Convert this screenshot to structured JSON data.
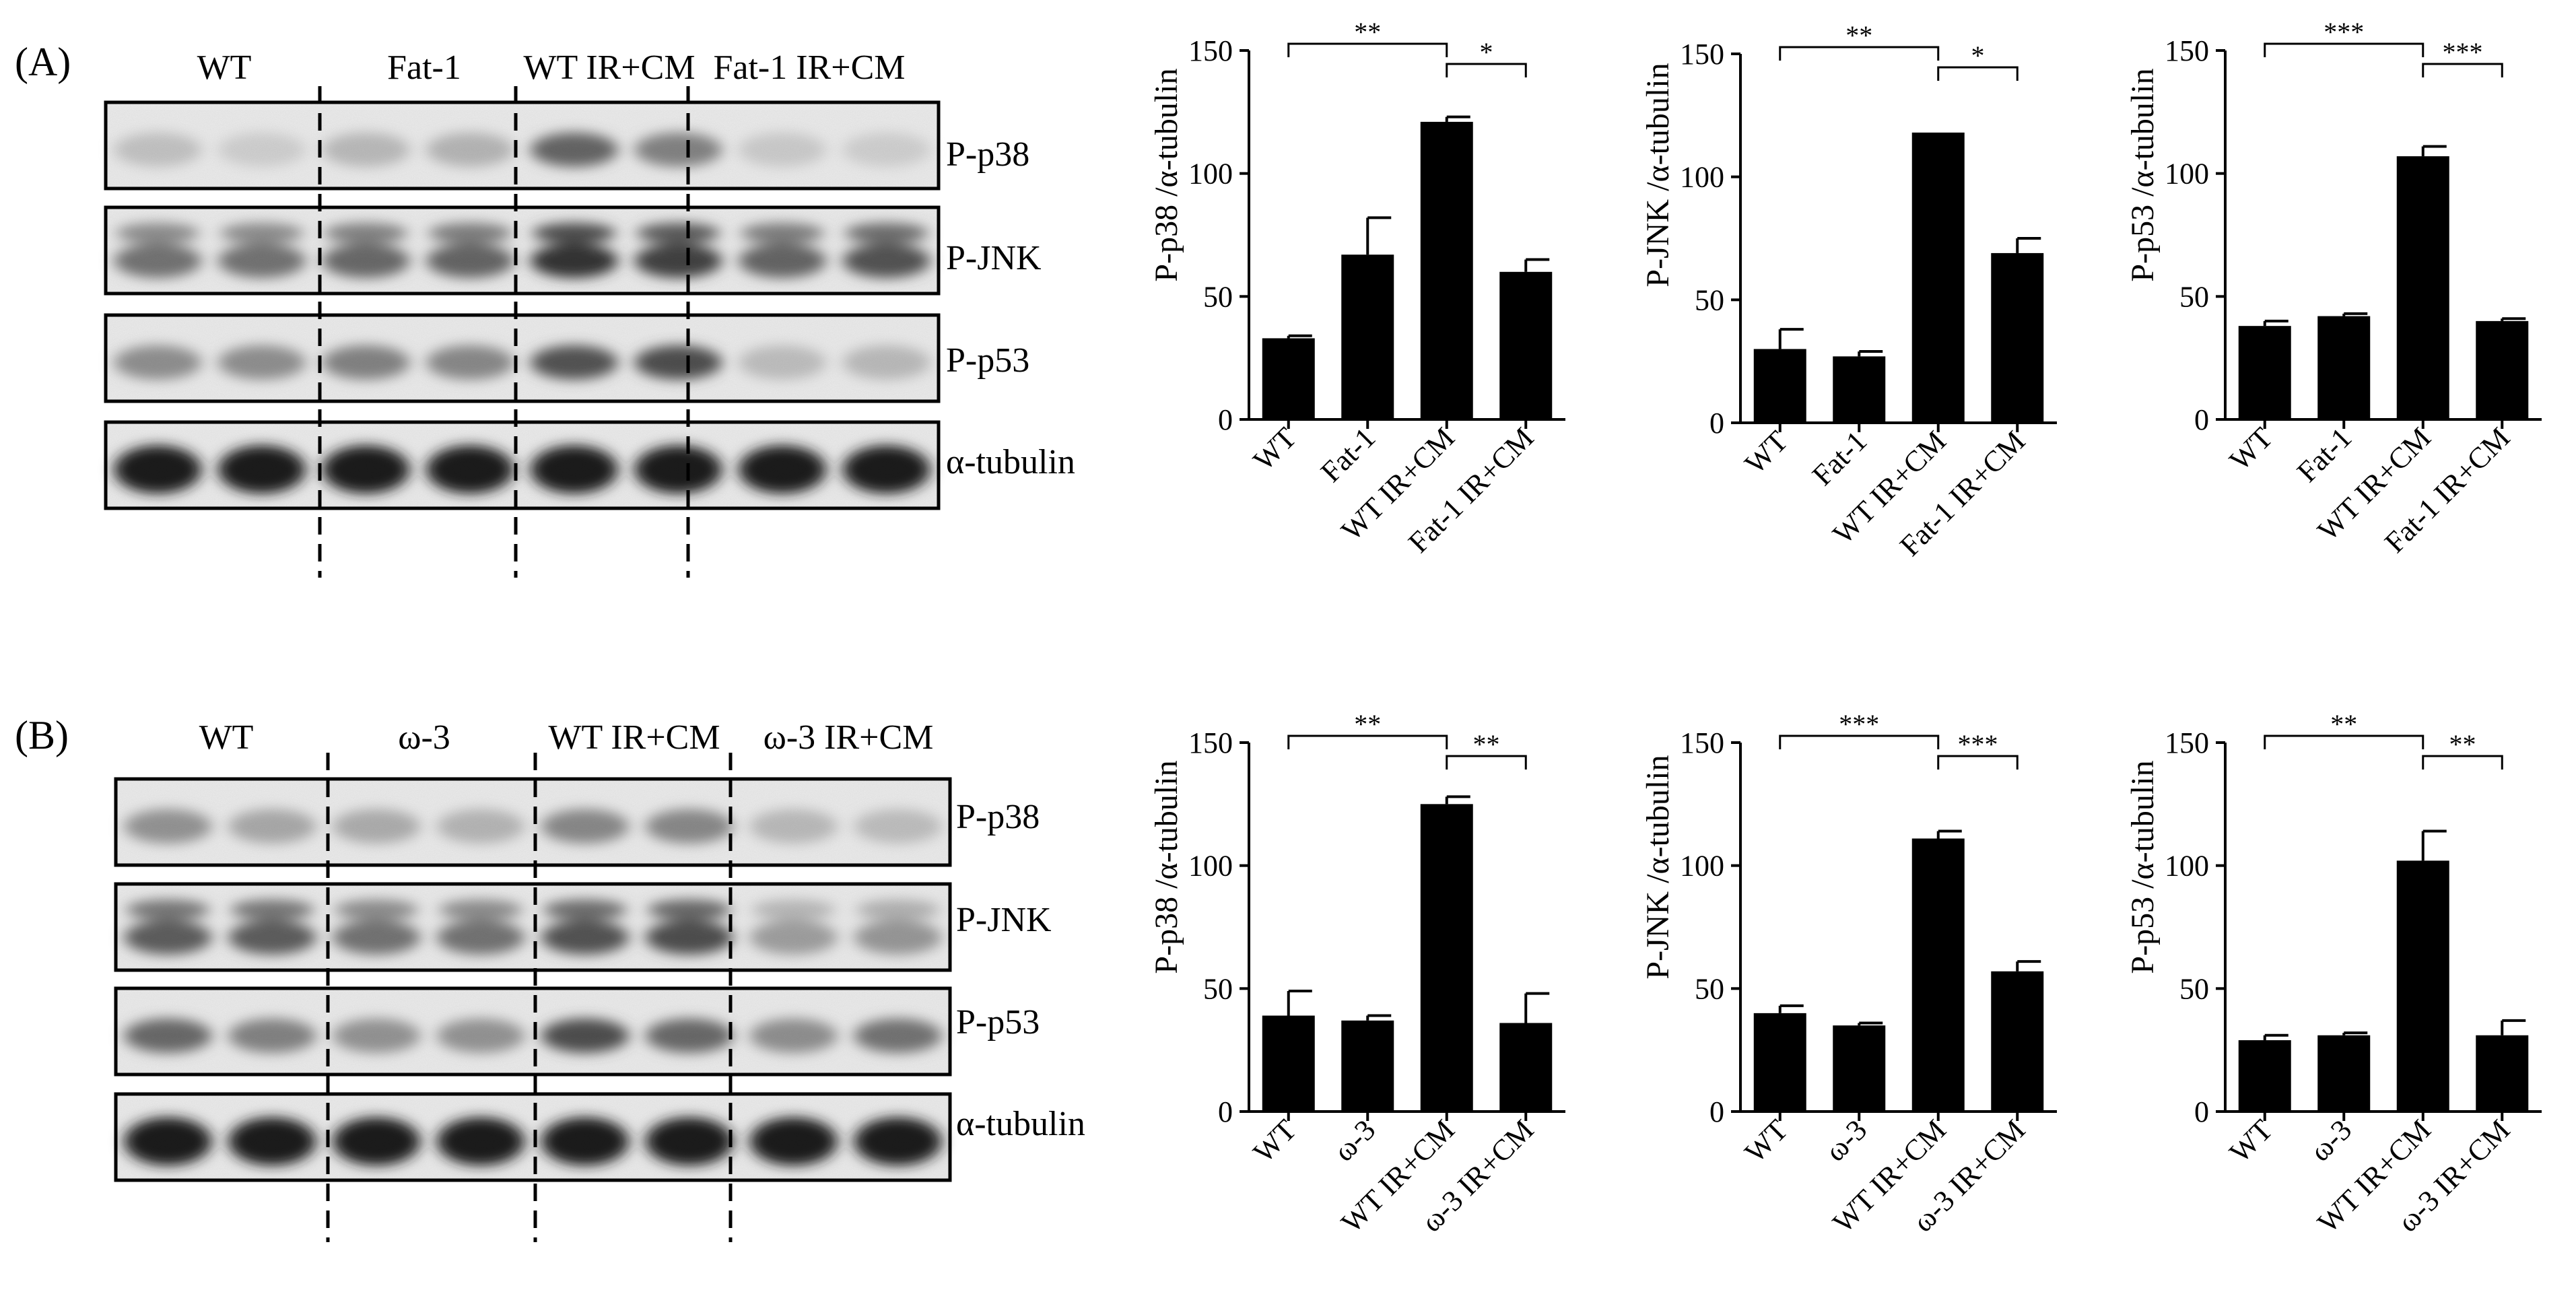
{
  "panels": [
    {
      "label": "(A)",
      "groups": [
        "WT",
        "Fat-1",
        "WT IR+CM",
        "Fat-1 IR+CM"
      ],
      "blots": [
        "P-p38",
        "P-JNK",
        "P-p53",
        "α-tubulin"
      ],
      "blot_intensity": [
        [
          0.18,
          0.12,
          0.22,
          0.24,
          0.62,
          0.48,
          0.14,
          0.12
        ],
        [
          0.55,
          0.55,
          0.6,
          0.62,
          0.85,
          0.78,
          0.62,
          0.7
        ],
        [
          0.42,
          0.42,
          0.48,
          0.45,
          0.7,
          0.72,
          0.2,
          0.22
        ],
        [
          0.95,
          0.95,
          0.95,
          0.95,
          0.95,
          0.95,
          0.95,
          0.95
        ]
      ]
    },
    {
      "label": "(B)",
      "groups": [
        "WT",
        "ω-3",
        "WT IR+CM",
        "ω-3 IR+CM"
      ],
      "blots": [
        "P-p38",
        "P-JNK",
        "P-p53",
        "α-tubulin"
      ],
      "blot_intensity": [
        [
          0.4,
          0.3,
          0.28,
          0.24,
          0.45,
          0.45,
          0.22,
          0.2
        ],
        [
          0.65,
          0.65,
          0.55,
          0.55,
          0.7,
          0.72,
          0.35,
          0.38
        ],
        [
          0.6,
          0.48,
          0.4,
          0.4,
          0.72,
          0.6,
          0.42,
          0.55
        ],
        [
          0.95,
          0.95,
          0.95,
          0.95,
          0.95,
          0.95,
          0.95,
          0.95
        ]
      ]
    }
  ],
  "chart_data": [
    {
      "type": "bar",
      "categories": [
        "WT",
        "Fat-1",
        "WT IR+CM",
        "Fat-1 IR+CM"
      ],
      "values": [
        33,
        67,
        121,
        60
      ],
      "errors": [
        1,
        15,
        2,
        5
      ],
      "ylabel": "P-p38 /α-tubulin",
      "ylim": [
        0,
        150
      ],
      "yticks": [
        0,
        50,
        100,
        150
      ],
      "brackets": [
        {
          "from": 0,
          "to": 2,
          "label": "**"
        },
        {
          "from": 2,
          "to": 3,
          "label": "*"
        }
      ]
    },
    {
      "type": "bar",
      "categories": [
        "WT",
        "Fat-1",
        "WT IR+CM",
        "Fat-1 IR+CM"
      ],
      "values": [
        30,
        27,
        118,
        69
      ],
      "errors": [
        8,
        2,
        0,
        6
      ],
      "ylabel": "P-JNK /α-tubulin",
      "ylim": [
        0,
        150
      ],
      "yticks": [
        0,
        50,
        100,
        150
      ],
      "brackets": [
        {
          "from": 0,
          "to": 2,
          "label": "**"
        },
        {
          "from": 2,
          "to": 3,
          "label": "*"
        }
      ]
    },
    {
      "type": "bar",
      "categories": [
        "WT",
        "Fat-1",
        "WT IR+CM",
        "Fat-1 IR+CM"
      ],
      "values": [
        38,
        42,
        107,
        40
      ],
      "errors": [
        2,
        1,
        4,
        1
      ],
      "ylabel": "P-p53 /α-tubulin",
      "ylim": [
        0,
        150
      ],
      "yticks": [
        0,
        50,
        100,
        150
      ],
      "brackets": [
        {
          "from": 0,
          "to": 2,
          "label": "***"
        },
        {
          "from": 2,
          "to": 3,
          "label": "***"
        }
      ]
    },
    {
      "type": "bar",
      "categories": [
        "WT",
        "ω-3",
        "WT IR+CM",
        "ω-3 IR+CM"
      ],
      "values": [
        39,
        37,
        125,
        36
      ],
      "errors": [
        10,
        2,
        3,
        12
      ],
      "ylabel": "P-p38 /α-tubulin",
      "ylim": [
        0,
        150
      ],
      "yticks": [
        0,
        50,
        100,
        150
      ],
      "brackets": [
        {
          "from": 0,
          "to": 2,
          "label": "**"
        },
        {
          "from": 2,
          "to": 3,
          "label": "**"
        }
      ]
    },
    {
      "type": "bar",
      "categories": [
        "WT",
        "ω-3",
        "WT IR+CM",
        "ω-3 IR+CM"
      ],
      "values": [
        40,
        35,
        111,
        57
      ],
      "errors": [
        3,
        1,
        3,
        4
      ],
      "ylabel": "P-JNK /α-tubulin",
      "ylim": [
        0,
        150
      ],
      "yticks": [
        0,
        50,
        100,
        150
      ],
      "brackets": [
        {
          "from": 0,
          "to": 2,
          "label": "***"
        },
        {
          "from": 2,
          "to": 3,
          "label": "***"
        }
      ]
    },
    {
      "type": "bar",
      "categories": [
        "WT",
        "ω-3",
        "WT IR+CM",
        "ω-3 IR+CM"
      ],
      "values": [
        29,
        31,
        102,
        31
      ],
      "errors": [
        2,
        1,
        12,
        6
      ],
      "ylabel": "P-p53 /α-tubulin",
      "ylim": [
        0,
        150
      ],
      "yticks": [
        0,
        50,
        100,
        150
      ],
      "brackets": [
        {
          "from": 0,
          "to": 2,
          "label": "**"
        },
        {
          "from": 2,
          "to": 3,
          "label": "**"
        }
      ]
    }
  ]
}
